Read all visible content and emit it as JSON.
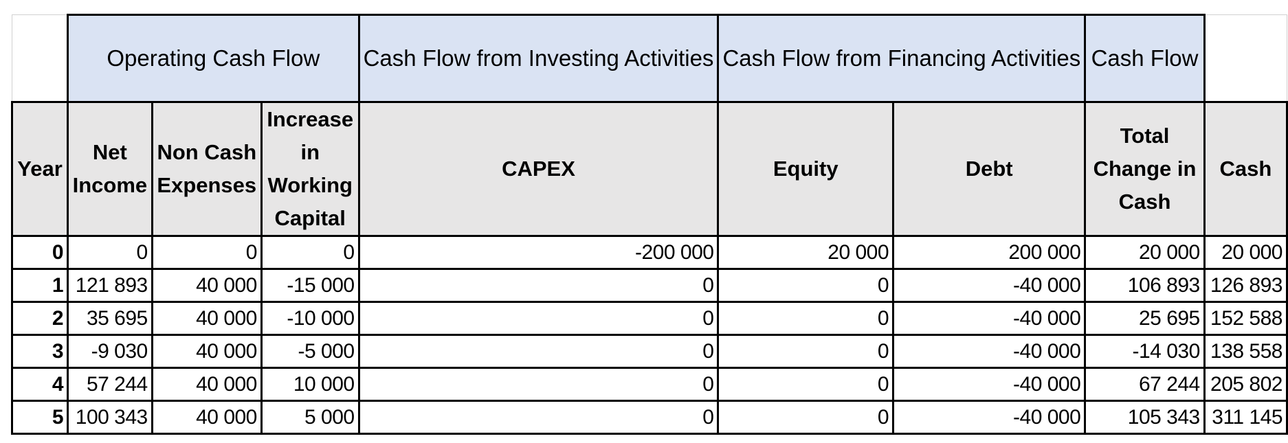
{
  "groups": {
    "operating": "Operating Cash Flow",
    "investing": "Cash Flow from Investing Activities",
    "financing": "Cash Flow from Financing Activities",
    "cashflow": "Cash Flow"
  },
  "headers": {
    "year": "Year",
    "net_income": "Net Income",
    "non_cash": "Non Cash Expenses",
    "working_capital": "Increase in Working Capital",
    "capex": "CAPEX",
    "equity": "Equity",
    "debt": "Debt",
    "total_change": "Total Change in Cash",
    "cash": "Cash"
  },
  "rows": [
    {
      "year": "0",
      "net_income": "0",
      "non_cash": "0",
      "working_capital": "0",
      "capex": "-200 000",
      "equity": "20 000",
      "debt": "200 000",
      "total_change": "20 000",
      "cash": "20 000"
    },
    {
      "year": "1",
      "net_income": "121 893",
      "non_cash": "40 000",
      "working_capital": "-15 000",
      "capex": "0",
      "equity": "0",
      "debt": "-40 000",
      "total_change": "106 893",
      "cash": "126 893"
    },
    {
      "year": "2",
      "net_income": "35 695",
      "non_cash": "40 000",
      "working_capital": "-10 000",
      "capex": "0",
      "equity": "0",
      "debt": "-40 000",
      "total_change": "25 695",
      "cash": "152 588"
    },
    {
      "year": "3",
      "net_income": "-9 030",
      "non_cash": "40 000",
      "working_capital": "-5 000",
      "capex": "0",
      "equity": "0",
      "debt": "-40 000",
      "total_change": "-14 030",
      "cash": "138 558"
    },
    {
      "year": "4",
      "net_income": "57 244",
      "non_cash": "40 000",
      "working_capital": "10 000",
      "capex": "0",
      "equity": "0",
      "debt": "-40 000",
      "total_change": "67 244",
      "cash": "205 802"
    },
    {
      "year": "5",
      "net_income": "100 343",
      "non_cash": "40 000",
      "working_capital": "5 000",
      "capex": "0",
      "equity": "0",
      "debt": "-40 000",
      "total_change": "105 343",
      "cash": "311 145"
    }
  ]
}
